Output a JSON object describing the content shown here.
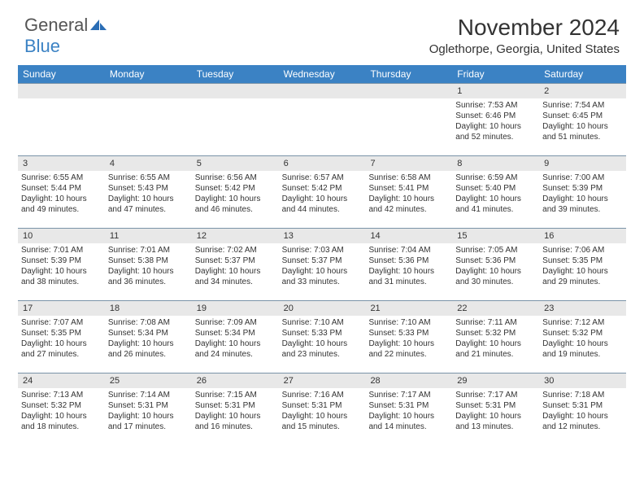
{
  "logo": {
    "text1": "General",
    "text2": "Blue"
  },
  "header": {
    "month_title": "November 2024",
    "location": "Oglethorpe, Georgia, United States"
  },
  "colors": {
    "header_bg": "#3b82c4",
    "header_text": "#ffffff",
    "daynum_bg": "#e8e8e8",
    "row_border": "#7a93a8",
    "text": "#333333",
    "logo_gray": "#555555",
    "logo_blue": "#3b82c4"
  },
  "day_names": [
    "Sunday",
    "Monday",
    "Tuesday",
    "Wednesday",
    "Thursday",
    "Friday",
    "Saturday"
  ],
  "weeks": [
    [
      {
        "day": "",
        "sunrise": "",
        "sunset": "",
        "daylight": ""
      },
      {
        "day": "",
        "sunrise": "",
        "sunset": "",
        "daylight": ""
      },
      {
        "day": "",
        "sunrise": "",
        "sunset": "",
        "daylight": ""
      },
      {
        "day": "",
        "sunrise": "",
        "sunset": "",
        "daylight": ""
      },
      {
        "day": "",
        "sunrise": "",
        "sunset": "",
        "daylight": ""
      },
      {
        "day": "1",
        "sunrise": "Sunrise: 7:53 AM",
        "sunset": "Sunset: 6:46 PM",
        "daylight": "Daylight: 10 hours and 52 minutes."
      },
      {
        "day": "2",
        "sunrise": "Sunrise: 7:54 AM",
        "sunset": "Sunset: 6:45 PM",
        "daylight": "Daylight: 10 hours and 51 minutes."
      }
    ],
    [
      {
        "day": "3",
        "sunrise": "Sunrise: 6:55 AM",
        "sunset": "Sunset: 5:44 PM",
        "daylight": "Daylight: 10 hours and 49 minutes."
      },
      {
        "day": "4",
        "sunrise": "Sunrise: 6:55 AM",
        "sunset": "Sunset: 5:43 PM",
        "daylight": "Daylight: 10 hours and 47 minutes."
      },
      {
        "day": "5",
        "sunrise": "Sunrise: 6:56 AM",
        "sunset": "Sunset: 5:42 PM",
        "daylight": "Daylight: 10 hours and 46 minutes."
      },
      {
        "day": "6",
        "sunrise": "Sunrise: 6:57 AM",
        "sunset": "Sunset: 5:42 PM",
        "daylight": "Daylight: 10 hours and 44 minutes."
      },
      {
        "day": "7",
        "sunrise": "Sunrise: 6:58 AM",
        "sunset": "Sunset: 5:41 PM",
        "daylight": "Daylight: 10 hours and 42 minutes."
      },
      {
        "day": "8",
        "sunrise": "Sunrise: 6:59 AM",
        "sunset": "Sunset: 5:40 PM",
        "daylight": "Daylight: 10 hours and 41 minutes."
      },
      {
        "day": "9",
        "sunrise": "Sunrise: 7:00 AM",
        "sunset": "Sunset: 5:39 PM",
        "daylight": "Daylight: 10 hours and 39 minutes."
      }
    ],
    [
      {
        "day": "10",
        "sunrise": "Sunrise: 7:01 AM",
        "sunset": "Sunset: 5:39 PM",
        "daylight": "Daylight: 10 hours and 38 minutes."
      },
      {
        "day": "11",
        "sunrise": "Sunrise: 7:01 AM",
        "sunset": "Sunset: 5:38 PM",
        "daylight": "Daylight: 10 hours and 36 minutes."
      },
      {
        "day": "12",
        "sunrise": "Sunrise: 7:02 AM",
        "sunset": "Sunset: 5:37 PM",
        "daylight": "Daylight: 10 hours and 34 minutes."
      },
      {
        "day": "13",
        "sunrise": "Sunrise: 7:03 AM",
        "sunset": "Sunset: 5:37 PM",
        "daylight": "Daylight: 10 hours and 33 minutes."
      },
      {
        "day": "14",
        "sunrise": "Sunrise: 7:04 AM",
        "sunset": "Sunset: 5:36 PM",
        "daylight": "Daylight: 10 hours and 31 minutes."
      },
      {
        "day": "15",
        "sunrise": "Sunrise: 7:05 AM",
        "sunset": "Sunset: 5:36 PM",
        "daylight": "Daylight: 10 hours and 30 minutes."
      },
      {
        "day": "16",
        "sunrise": "Sunrise: 7:06 AM",
        "sunset": "Sunset: 5:35 PM",
        "daylight": "Daylight: 10 hours and 29 minutes."
      }
    ],
    [
      {
        "day": "17",
        "sunrise": "Sunrise: 7:07 AM",
        "sunset": "Sunset: 5:35 PM",
        "daylight": "Daylight: 10 hours and 27 minutes."
      },
      {
        "day": "18",
        "sunrise": "Sunrise: 7:08 AM",
        "sunset": "Sunset: 5:34 PM",
        "daylight": "Daylight: 10 hours and 26 minutes."
      },
      {
        "day": "19",
        "sunrise": "Sunrise: 7:09 AM",
        "sunset": "Sunset: 5:34 PM",
        "daylight": "Daylight: 10 hours and 24 minutes."
      },
      {
        "day": "20",
        "sunrise": "Sunrise: 7:10 AM",
        "sunset": "Sunset: 5:33 PM",
        "daylight": "Daylight: 10 hours and 23 minutes."
      },
      {
        "day": "21",
        "sunrise": "Sunrise: 7:10 AM",
        "sunset": "Sunset: 5:33 PM",
        "daylight": "Daylight: 10 hours and 22 minutes."
      },
      {
        "day": "22",
        "sunrise": "Sunrise: 7:11 AM",
        "sunset": "Sunset: 5:32 PM",
        "daylight": "Daylight: 10 hours and 21 minutes."
      },
      {
        "day": "23",
        "sunrise": "Sunrise: 7:12 AM",
        "sunset": "Sunset: 5:32 PM",
        "daylight": "Daylight: 10 hours and 19 minutes."
      }
    ],
    [
      {
        "day": "24",
        "sunrise": "Sunrise: 7:13 AM",
        "sunset": "Sunset: 5:32 PM",
        "daylight": "Daylight: 10 hours and 18 minutes."
      },
      {
        "day": "25",
        "sunrise": "Sunrise: 7:14 AM",
        "sunset": "Sunset: 5:31 PM",
        "daylight": "Daylight: 10 hours and 17 minutes."
      },
      {
        "day": "26",
        "sunrise": "Sunrise: 7:15 AM",
        "sunset": "Sunset: 5:31 PM",
        "daylight": "Daylight: 10 hours and 16 minutes."
      },
      {
        "day": "27",
        "sunrise": "Sunrise: 7:16 AM",
        "sunset": "Sunset: 5:31 PM",
        "daylight": "Daylight: 10 hours and 15 minutes."
      },
      {
        "day": "28",
        "sunrise": "Sunrise: 7:17 AM",
        "sunset": "Sunset: 5:31 PM",
        "daylight": "Daylight: 10 hours and 14 minutes."
      },
      {
        "day": "29",
        "sunrise": "Sunrise: 7:17 AM",
        "sunset": "Sunset: 5:31 PM",
        "daylight": "Daylight: 10 hours and 13 minutes."
      },
      {
        "day": "30",
        "sunrise": "Sunrise: 7:18 AM",
        "sunset": "Sunset: 5:31 PM",
        "daylight": "Daylight: 10 hours and 12 minutes."
      }
    ]
  ]
}
